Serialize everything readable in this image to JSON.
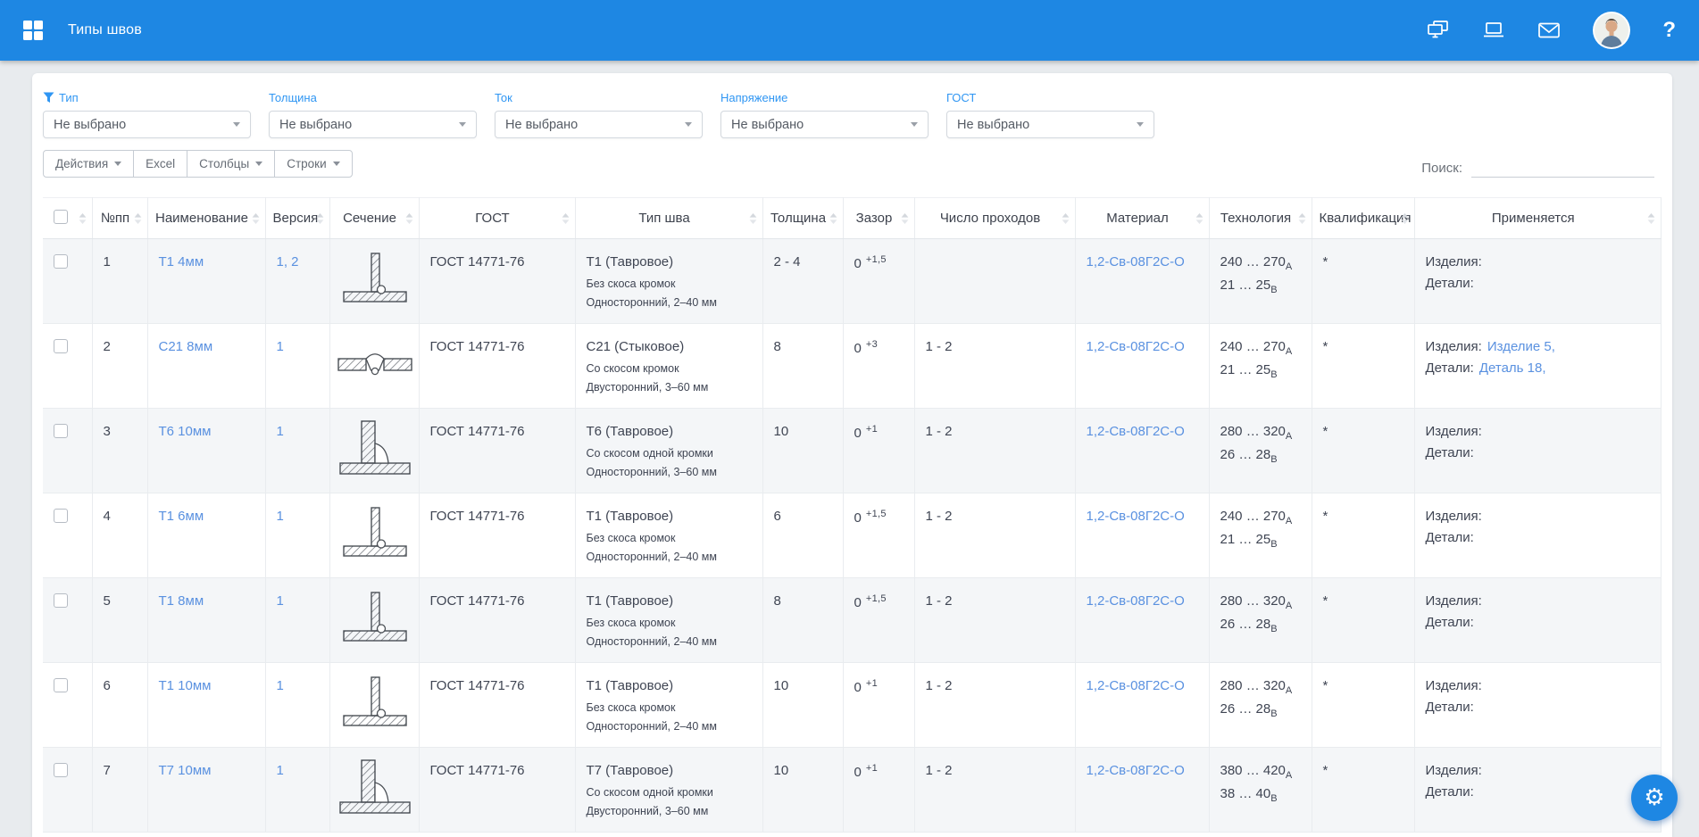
{
  "app": {
    "title": "Типы швов",
    "help_label": "?"
  },
  "filters": {
    "items": [
      {
        "label": "Тип",
        "value": "Не выбрано",
        "has_icon": true
      },
      {
        "label": "Толщина",
        "value": "Не выбрано",
        "has_icon": false
      },
      {
        "label": "Ток",
        "value": "Не выбрано",
        "has_icon": false
      },
      {
        "label": "Напряжение",
        "value": "Не выбрано",
        "has_icon": false
      },
      {
        "label": "ГОСТ",
        "value": "Не выбрано",
        "has_icon": false
      }
    ]
  },
  "toolbar": {
    "actions_label": "Действия",
    "excel_label": "Excel",
    "columns_label": "Столбцы",
    "rows_label": "Строки",
    "search_label": "Поиск:",
    "search_value": ""
  },
  "table": {
    "columns": [
      "",
      "№пп",
      "Наименование",
      "Версия",
      "Сечение",
      "ГОСТ",
      "Тип шва",
      "Толщина",
      "Зазор",
      "Число проходов",
      "Материал",
      "Технология",
      "Квалификация",
      "Применяется"
    ],
    "rows": [
      {
        "num": "1",
        "name": "Т1 4мм",
        "version": "1, 2",
        "section": "tee",
        "gost": "ГОСТ 14771-76",
        "seam_type": "Т1 (Тавровое)",
        "seam_edges": "Без скоса кромок",
        "seam_sides": "Односторонний, 2–40 мм",
        "thickness": "2 - 4",
        "gap_base": "0",
        "gap_sup": "+1,5",
        "passes": "",
        "material": "1,2-Св-08Г2С-О",
        "tech_current": "240 … 270",
        "tech_current_sub": "А",
        "tech_voltage": "21 … 25",
        "tech_voltage_sub": "В",
        "qualification": "*",
        "products_label": "Изделия:",
        "products_link": "",
        "details_label": "Детали:",
        "details_link": ""
      },
      {
        "num": "2",
        "name": "С21 8мм",
        "version": "1",
        "section": "butt",
        "gost": "ГОСТ 14771-76",
        "seam_type": "С21 (Стыковое)",
        "seam_edges": "Со скосом кромок",
        "seam_sides": "Двусторонний, 3–60 мм",
        "thickness": "8",
        "gap_base": "0",
        "gap_sup": "+3",
        "passes": "1 - 2",
        "material": "1,2-Св-08Г2С-О",
        "tech_current": "240 … 270",
        "tech_current_sub": "А",
        "tech_voltage": "21 … 25",
        "tech_voltage_sub": "В",
        "qualification": "*",
        "products_label": "Изделия:",
        "products_link": "Изделие 5,",
        "details_label": "Детали:",
        "details_link": "Деталь 18,"
      },
      {
        "num": "3",
        "name": "Т6 10мм",
        "version": "1",
        "section": "tee-bevel",
        "gost": "ГОСТ 14771-76",
        "seam_type": "Т6 (Тавровое)",
        "seam_edges": "Со скосом одной кромки",
        "seam_sides": "Односторонний, 3–60 мм",
        "thickness": "10",
        "gap_base": "0",
        "gap_sup": "+1",
        "passes": "1 - 2",
        "material": "1,2-Св-08Г2С-О",
        "tech_current": "280 … 320",
        "tech_current_sub": "А",
        "tech_voltage": "26 … 28",
        "tech_voltage_sub": "В",
        "qualification": "*",
        "products_label": "Изделия:",
        "products_link": "",
        "details_label": "Детали:",
        "details_link": ""
      },
      {
        "num": "4",
        "name": "Т1 6мм",
        "version": "1",
        "section": "tee",
        "gost": "ГОСТ 14771-76",
        "seam_type": "Т1 (Тавровое)",
        "seam_edges": "Без скоса кромок",
        "seam_sides": "Односторонний, 2–40 мм",
        "thickness": "6",
        "gap_base": "0",
        "gap_sup": "+1,5",
        "passes": "1 - 2",
        "material": "1,2-Св-08Г2С-О",
        "tech_current": "240 … 270",
        "tech_current_sub": "А",
        "tech_voltage": "21 … 25",
        "tech_voltage_sub": "В",
        "qualification": "*",
        "products_label": "Изделия:",
        "products_link": "",
        "details_label": "Детали:",
        "details_link": ""
      },
      {
        "num": "5",
        "name": "Т1 8мм",
        "version": "1",
        "section": "tee",
        "gost": "ГОСТ 14771-76",
        "seam_type": "Т1 (Тавровое)",
        "seam_edges": "Без скоса кромок",
        "seam_sides": "Односторонний, 2–40 мм",
        "thickness": "8",
        "gap_base": "0",
        "gap_sup": "+1,5",
        "passes": "1 - 2",
        "material": "1,2-Св-08Г2С-О",
        "tech_current": "280 … 320",
        "tech_current_sub": "А",
        "tech_voltage": "26 … 28",
        "tech_voltage_sub": "В",
        "qualification": "*",
        "products_label": "Изделия:",
        "products_link": "",
        "details_label": "Детали:",
        "details_link": ""
      },
      {
        "num": "6",
        "name": "Т1 10мм",
        "version": "1",
        "section": "tee",
        "gost": "ГОСТ 14771-76",
        "seam_type": "Т1 (Тавровое)",
        "seam_edges": "Без скоса кромок",
        "seam_sides": "Односторонний, 2–40 мм",
        "thickness": "10",
        "gap_base": "0",
        "gap_sup": "+1",
        "passes": "1 - 2",
        "material": "1,2-Св-08Г2С-О",
        "tech_current": "280 … 320",
        "tech_current_sub": "А",
        "tech_voltage": "26 … 28",
        "tech_voltage_sub": "В",
        "qualification": "*",
        "products_label": "Изделия:",
        "products_link": "",
        "details_label": "Детали:",
        "details_link": ""
      },
      {
        "num": "7",
        "name": "Т7 10мм",
        "version": "1",
        "section": "tee-bevel",
        "gost": "ГОСТ 14771-76",
        "seam_type": "Т7 (Тавровое)",
        "seam_edges": "Со скосом одной кромки",
        "seam_sides": "Двусторонний, 3–60 мм",
        "thickness": "10",
        "gap_base": "0",
        "gap_sup": "+1",
        "passes": "1 - 2",
        "material": "1,2-Св-08Г2С-О",
        "tech_current": "380 … 420",
        "tech_current_sub": "А",
        "tech_voltage": "38 … 40",
        "tech_voltage_sub": "В",
        "qualification": "*",
        "products_label": "Изделия:",
        "products_link": "",
        "details_label": "Детали:",
        "details_link": ""
      }
    ]
  },
  "fab": {
    "gear_glyph": "⚙"
  },
  "colors": {
    "accent": "#1e87e3",
    "link": "#5a91e0",
    "filter_label": "#2f96f3",
    "row_stripe": "#f4f6f8"
  }
}
